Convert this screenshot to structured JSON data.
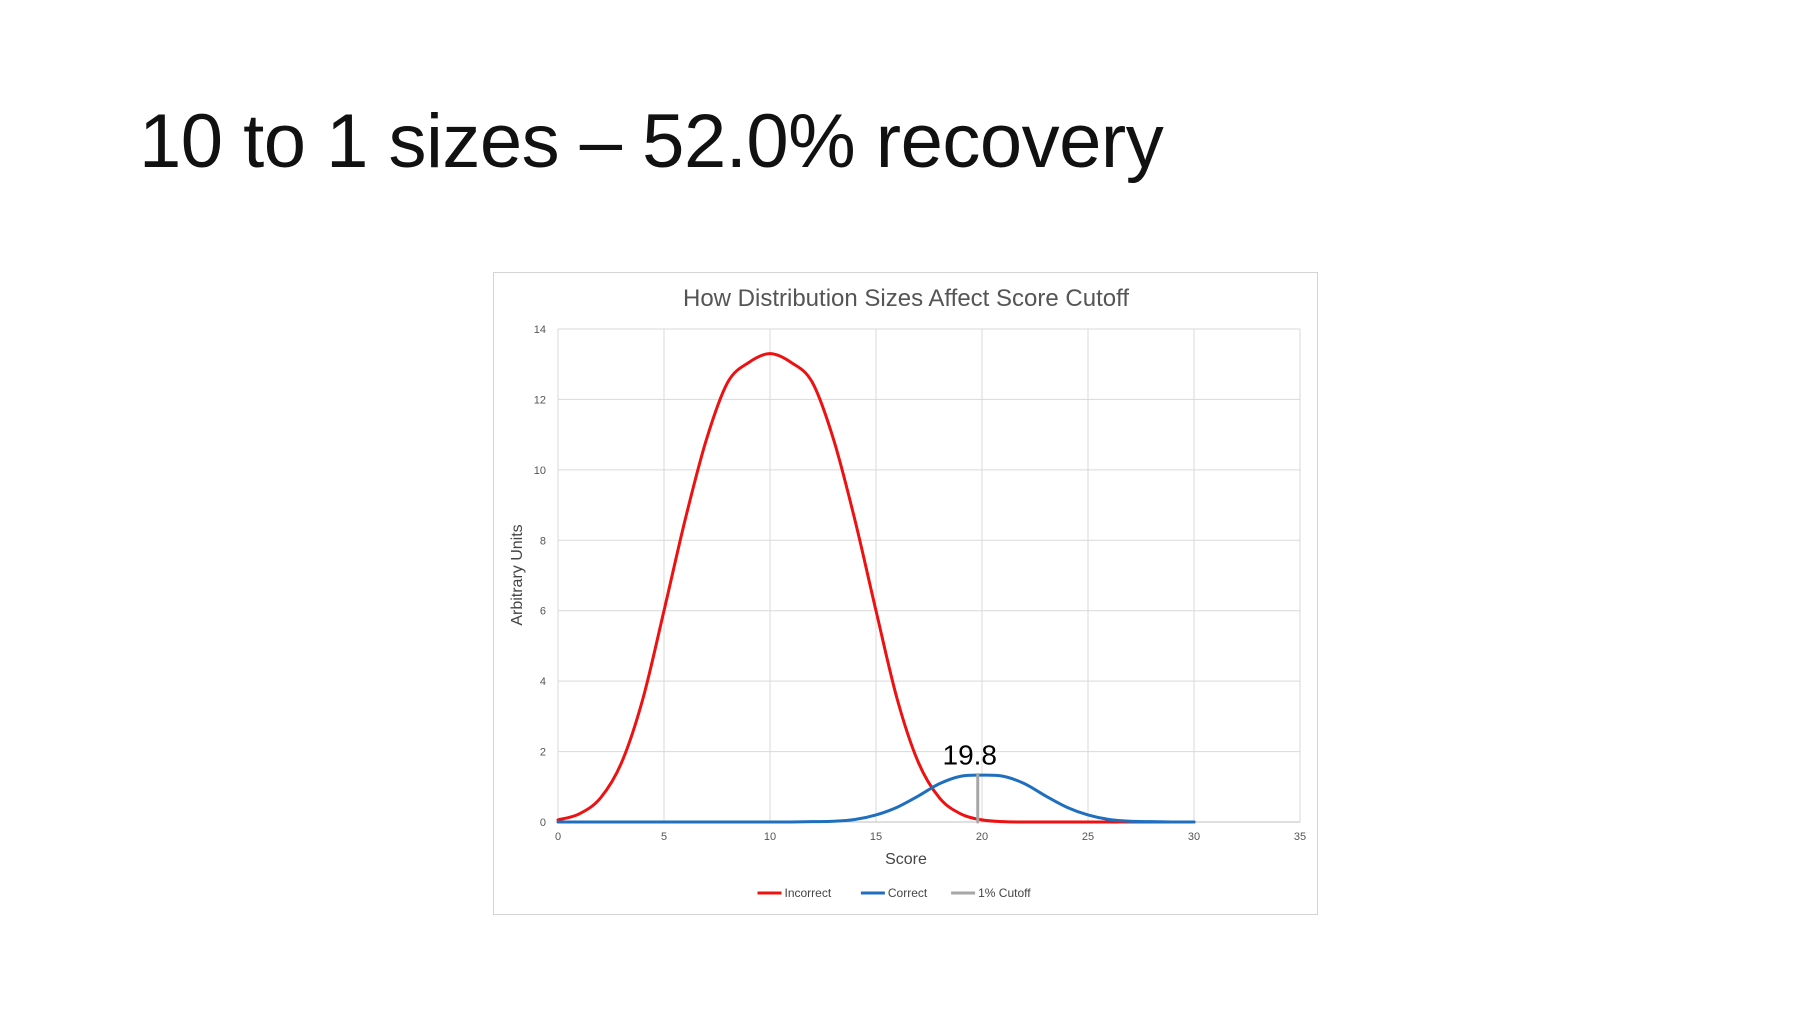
{
  "slide": {
    "title": "10 to 1 sizes – 52.0% recovery"
  },
  "chart_data": {
    "type": "line",
    "title": "How Distribution Sizes Affect Score Cutoff",
    "xlabel": "Score",
    "ylabel": "Arbitrary Units",
    "xlim": [
      0,
      35
    ],
    "ylim": [
      0,
      14
    ],
    "x_ticks": [
      0,
      5,
      10,
      15,
      20,
      25,
      30,
      35
    ],
    "y_ticks": [
      0,
      2,
      4,
      6,
      8,
      10,
      12,
      14
    ],
    "grid": true,
    "legend_position": "bottom",
    "series": [
      {
        "name": "Incorrect",
        "color": "#ee1111",
        "x": [
          0,
          1,
          2,
          3,
          4,
          5,
          6,
          7,
          8,
          9,
          10,
          11,
          12,
          13,
          14,
          15,
          16,
          17,
          18,
          19,
          20,
          21,
          22,
          23,
          24,
          25,
          26,
          27,
          28,
          29,
          30
        ],
        "values": [
          0.06,
          0.23,
          0.68,
          1.69,
          3.49,
          6.0,
          8.59,
          10.86,
          12.48,
          13.05,
          13.3,
          13.05,
          12.48,
          10.86,
          8.59,
          6.0,
          3.49,
          1.69,
          0.68,
          0.23,
          0.06,
          0.01,
          0,
          0,
          0,
          0,
          0,
          0,
          0,
          0,
          0
        ]
      },
      {
        "name": "Correct",
        "color": "#1f6fbf",
        "x": [
          0,
          1,
          2,
          3,
          4,
          5,
          6,
          7,
          8,
          9,
          10,
          11,
          12,
          13,
          14,
          15,
          16,
          17,
          18,
          19,
          20,
          21,
          22,
          23,
          24,
          25,
          26,
          27,
          28,
          29,
          30
        ],
        "values": [
          0,
          0,
          0,
          0,
          0,
          0,
          0,
          0,
          0,
          0,
          0,
          0,
          0.01,
          0.02,
          0.07,
          0.2,
          0.42,
          0.74,
          1.09,
          1.3,
          1.33,
          1.3,
          1.09,
          0.74,
          0.42,
          0.2,
          0.07,
          0.02,
          0.01,
          0,
          0
        ]
      },
      {
        "name": "1% Cutoff",
        "color": "#a6a6a6",
        "x": [
          19.8,
          19.8
        ],
        "values": [
          0,
          1.35
        ]
      }
    ],
    "annotations": [
      {
        "text": "19.8",
        "x": 19.8,
        "y": 1.35
      }
    ]
  }
}
